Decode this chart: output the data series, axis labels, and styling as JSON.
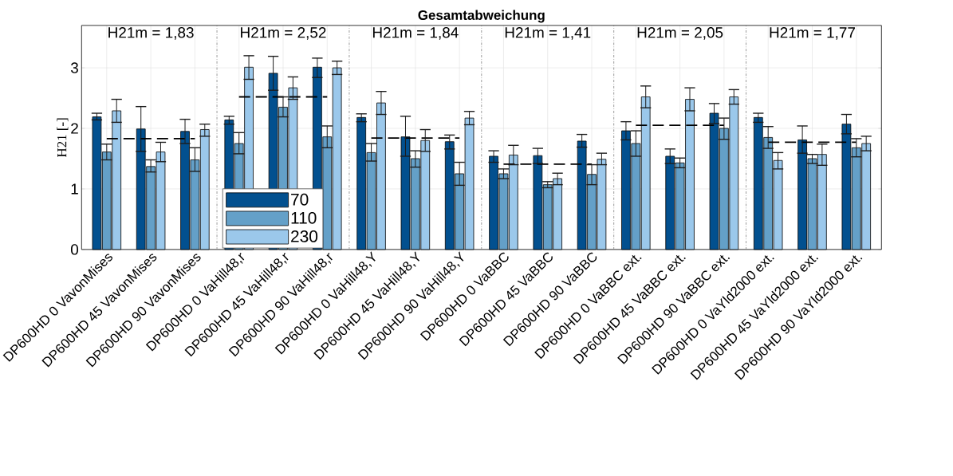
{
  "chart_data": {
    "type": "bar",
    "title": "Gesamtabweichung",
    "ylabel": "H21 [-]",
    "categories": [
      "DP600HD 0 VavonMises",
      "DP600HD 45 VavonMises",
      "DP600HD 90 VavonMises",
      "DP600HD 0 VaHill48,r",
      "DP600HD 45 VaHill48,r",
      "DP600HD 90 VaHill48,r",
      "DP600HD 0 VaHill48,Y",
      "DP600HD 45 VaHill48,Y",
      "DP600HD 90 VaHill48,Y",
      "DP600HD 0 VaBBC",
      "DP600HD 45 VaBBC",
      "DP600HD 90 VaBBC",
      "DP600HD 0 VaBBC ext.",
      "DP600HD 45 VaBBC ext.",
      "DP600HD 90 VaBBC ext.",
      "DP600HD 0 VaYld2000 ext.",
      "DP600HD 45 VaYld2000 ext.",
      "DP600HD 90 VaYld2000 ext."
    ],
    "series": [
      {
        "name": "70",
        "color": "#02508f",
        "values": [
          2.19,
          1.99,
          1.95,
          2.14,
          2.91,
          3.01,
          2.18,
          1.86,
          1.78,
          1.54,
          1.55,
          1.79,
          1.96,
          1.54,
          2.25,
          2.18,
          1.81,
          2.07
        ],
        "errors": [
          [
            2.14,
            2.25
          ],
          [
            1.62,
            2.36
          ],
          [
            1.75,
            2.15
          ],
          [
            2.07,
            2.2
          ],
          [
            2.63,
            3.19
          ],
          [
            2.84,
            3.16
          ],
          [
            2.11,
            2.24
          ],
          [
            1.54,
            2.2
          ],
          [
            1.66,
            1.89
          ],
          [
            1.44,
            1.63
          ],
          [
            1.42,
            1.67
          ],
          [
            1.69,
            1.9
          ],
          [
            1.81,
            2.11
          ],
          [
            1.42,
            1.66
          ],
          [
            2.08,
            2.41
          ],
          [
            2.1,
            2.25
          ],
          [
            1.59,
            2.04
          ],
          [
            1.91,
            2.23
          ]
        ]
      },
      {
        "name": "110",
        "color": "#64a0c8",
        "values": [
          1.61,
          1.37,
          1.48,
          1.75,
          2.35,
          1.86,
          1.6,
          1.5,
          1.25,
          1.25,
          1.07,
          1.24,
          1.75,
          1.43,
          2.0,
          1.85,
          1.5,
          1.68
        ],
        "errors": [
          [
            1.48,
            1.74
          ],
          [
            1.28,
            1.48
          ],
          [
            1.29,
            1.68
          ],
          [
            1.58,
            1.93
          ],
          [
            2.19,
            2.52
          ],
          [
            1.68,
            2.04
          ],
          [
            1.46,
            1.75
          ],
          [
            1.36,
            1.63
          ],
          [
            1.06,
            1.44
          ],
          [
            1.17,
            1.33
          ],
          [
            1.02,
            1.12
          ],
          [
            1.07,
            1.4
          ],
          [
            1.54,
            1.96
          ],
          [
            1.35,
            1.51
          ],
          [
            1.82,
            2.17
          ],
          [
            1.67,
            2.03
          ],
          [
            1.42,
            1.57
          ],
          [
            1.53,
            1.83
          ]
        ]
      },
      {
        "name": "230",
        "color": "#9bc8eb",
        "values": [
          2.29,
          1.61,
          1.98,
          3.01,
          2.67,
          3.0,
          2.42,
          1.8,
          2.17,
          1.56,
          1.17,
          1.49,
          2.52,
          2.48,
          2.52,
          1.47,
          1.57,
          1.75
        ],
        "errors": [
          [
            2.1,
            2.48
          ],
          [
            1.45,
            1.77
          ],
          [
            1.87,
            2.07
          ],
          [
            2.81,
            3.2
          ],
          [
            2.48,
            2.85
          ],
          [
            2.89,
            3.11
          ],
          [
            2.23,
            2.61
          ],
          [
            1.62,
            1.98
          ],
          [
            2.06,
            2.28
          ],
          [
            1.4,
            1.72
          ],
          [
            1.07,
            1.26
          ],
          [
            1.4,
            1.59
          ],
          [
            2.34,
            2.7
          ],
          [
            2.29,
            2.67
          ],
          [
            2.4,
            2.64
          ],
          [
            1.33,
            1.6
          ],
          [
            1.39,
            1.74
          ],
          [
            1.63,
            1.87
          ]
        ]
      },
      {
        "type": "line",
        "color": "#000000",
        "line_style": "dashed",
        "values": [
          1.83,
          1.83,
          1.83,
          null,
          null,
          null,
          null,
          null,
          null,
          null,
          null,
          null,
          null,
          null,
          null,
          null,
          null,
          null
        ]
      },
      {
        "type": "line",
        "color": "#000000",
        "line_style": "dashed",
        "values": [
          null,
          null,
          null,
          2.52,
          2.52,
          2.52,
          null,
          null,
          null,
          null,
          null,
          null,
          null,
          null,
          null,
          null,
          null,
          null
        ]
      },
      {
        "type": "line",
        "color": "#000000",
        "line_style": "dashed",
        "values": [
          null,
          null,
          null,
          null,
          null,
          null,
          1.84,
          1.84,
          1.84,
          null,
          null,
          null,
          null,
          null,
          null,
          null,
          null,
          null
        ]
      },
      {
        "type": "line",
        "color": "#000000",
        "line_style": "dashed",
        "values": [
          null,
          null,
          null,
          null,
          null,
          null,
          null,
          null,
          null,
          1.41,
          1.41,
          1.41,
          null,
          null,
          null,
          null,
          null,
          null
        ]
      },
      {
        "type": "line",
        "color": "#000000",
        "line_style": "dashed",
        "values": [
          null,
          null,
          null,
          null,
          null,
          null,
          null,
          null,
          null,
          null,
          null,
          null,
          2.05,
          2.05,
          2.05,
          null,
          null,
          null
        ]
      },
      {
        "type": "line",
        "color": "#000000",
        "line_style": "dashed",
        "values": [
          null,
          null,
          null,
          null,
          null,
          null,
          null,
          null,
          null,
          null,
          null,
          null,
          null,
          null,
          null,
          1.77,
          1.77,
          1.77
        ]
      }
    ],
    "annotations": [
      "H21m = 1,83",
      "H21m = 2,52",
      "H21m = 1,84",
      "H21m = 1,41",
      "H21m = 2,05",
      "H21m = 1,77"
    ],
    "ylim": [
      0,
      3.7
    ],
    "yticks": [
      0,
      1,
      2,
      3
    ],
    "grid": true,
    "legend": "bottom left"
  }
}
